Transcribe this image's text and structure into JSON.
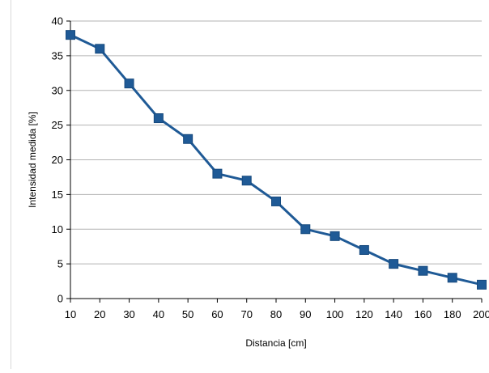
{
  "chart_data": {
    "type": "line",
    "title": "",
    "xlabel": "Distancia [cm]",
    "ylabel": "Intensidad medida [%]",
    "categories": [
      "10",
      "20",
      "30",
      "40",
      "50",
      "60",
      "70",
      "80",
      "90",
      "100",
      "120",
      "140",
      "160",
      "180",
      "200"
    ],
    "series": [
      {
        "values": [
          38,
          36,
          31,
          26,
          23,
          18,
          17,
          14,
          10,
          9,
          7,
          5,
          4,
          3,
          2
        ]
      }
    ],
    "ylim": [
      0,
      40
    ],
    "yticks": [
      0,
      5,
      10,
      15,
      20,
      25,
      30,
      35,
      40
    ],
    "grid": true,
    "legend": "none",
    "colors": {
      "line": "#1f5a96",
      "marker": "#1f5a96",
      "grid": "#b3b3b3",
      "axis": "#000000"
    }
  }
}
